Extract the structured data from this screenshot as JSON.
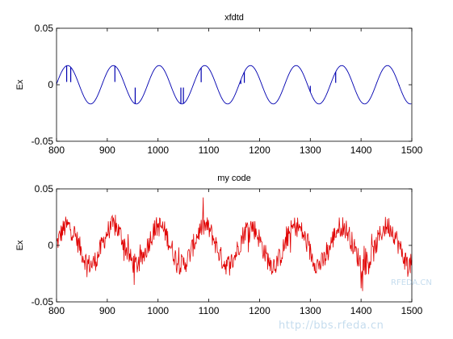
{
  "chart_data": [
    {
      "type": "line",
      "title": "xfdtd",
      "xlabel": "",
      "ylabel": "Ex",
      "xlim": [
        800,
        1500
      ],
      "ylim": [
        -0.05,
        0.05
      ],
      "xticks": [
        "800",
        "900",
        "1000",
        "1100",
        "1200",
        "1300",
        "1400",
        "1500"
      ],
      "yticks": [
        "-0.05",
        "0",
        "0.05"
      ],
      "grid": false,
      "series": [
        {
          "color": "#0000b0",
          "description_values": "sinusoid, amplitude ~0.017, period ~90 samples, small dropout spikes",
          "amplitude": 0.017,
          "period": 90,
          "phase_peak_x": 822,
          "spikes_x": [
            820,
            828,
            915,
            955,
            1045,
            1050,
            1085,
            1163,
            1170,
            1300,
            1350,
            1475
          ]
        }
      ]
    },
    {
      "type": "line",
      "title": "my code",
      "xlabel": "",
      "ylabel": "Ex",
      "xlim": [
        800,
        1500
      ],
      "ylim": [
        -0.05,
        0.05
      ],
      "xticks": [
        "800",
        "900",
        "1000",
        "1100",
        "1200",
        "1300",
        "1400",
        "1500"
      ],
      "yticks": [
        "-0.05",
        "0",
        "0.05"
      ],
      "grid": false,
      "series": [
        {
          "color": "#e00000",
          "amplitude": 0.017,
          "period": 90,
          "phase_peak_x": 822,
          "noise": 0.012
        }
      ]
    }
  ],
  "watermark": {
    "url": "http://bbs.rfeda.cn",
    "site": "RFEDA.CN"
  }
}
